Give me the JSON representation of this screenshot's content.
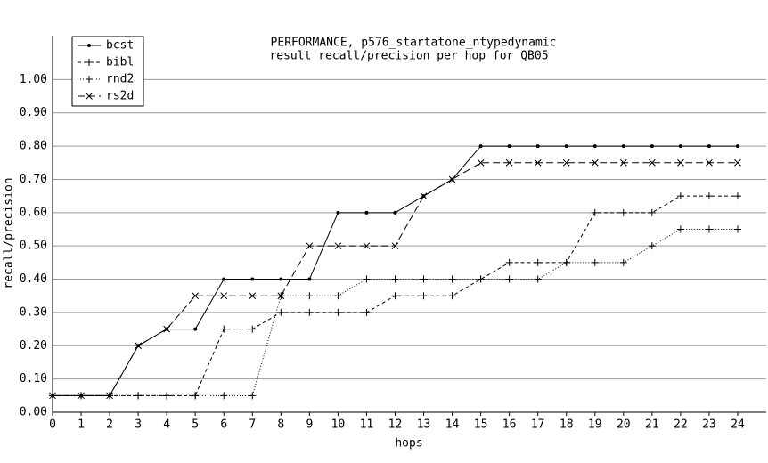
{
  "chart_data": {
    "type": "line",
    "title": "PERFORMANCE, p576_startatone_ntypedynamic",
    "subtitle": "result recall/precision per hop for QB05",
    "x_label": "hops",
    "y_label": "recall/precision",
    "x": [
      0,
      1,
      2,
      3,
      4,
      5,
      6,
      7,
      8,
      9,
      10,
      11,
      12,
      13,
      14,
      15,
      16,
      17,
      18,
      19,
      20,
      21,
      22,
      23,
      24
    ],
    "xlim": [
      0,
      25
    ],
    "xticks": [
      0,
      1,
      2,
      3,
      4,
      5,
      6,
      7,
      8,
      9,
      10,
      11,
      12,
      13,
      14,
      15,
      16,
      17,
      18,
      19,
      20,
      21,
      22,
      23,
      24
    ],
    "ylim": [
      0,
      1.1
    ],
    "yticks": [
      {
        "value": 0,
        "label": "0.00"
      },
      {
        "value": 0.1,
        "label": "0.10"
      },
      {
        "value": 0.2,
        "label": "0.20"
      },
      {
        "value": 0.3,
        "label": "0.30"
      },
      {
        "value": 0.4,
        "label": "0.40"
      },
      {
        "value": 0.5,
        "label": "0.50"
      },
      {
        "value": 0.6,
        "label": "0.60"
      },
      {
        "value": 0.7,
        "label": "0.70"
      },
      {
        "value": 0.8,
        "label": "0.80"
      },
      {
        "value": 0.9,
        "label": "0.90"
      },
      {
        "value": 1.0,
        "label": "1.00"
      }
    ],
    "grid": true,
    "legend": "upper left",
    "series": [
      {
        "name": "bcst",
        "color": "#000000",
        "dash": "solid",
        "marker": "dot",
        "values": [
          0.05,
          0.05,
          0.05,
          0.2,
          0.25,
          0.25,
          0.4,
          0.4,
          0.4,
          0.4,
          0.6,
          0.6,
          0.6,
          0.65,
          0.7,
          0.8,
          0.8,
          0.8,
          0.8,
          0.8,
          0.8,
          0.8,
          0.8,
          0.8,
          0.8
        ]
      },
      {
        "name": "bibl",
        "color": "#000000",
        "dash": "dashed",
        "marker": "plus",
        "values": [
          0.05,
          0.05,
          0.05,
          0.05,
          0.05,
          0.05,
          0.25,
          0.25,
          0.3,
          0.3,
          0.3,
          0.3,
          0.35,
          0.35,
          0.35,
          0.4,
          0.45,
          0.45,
          0.45,
          0.6,
          0.6,
          0.6,
          0.65,
          0.65,
          0.65
        ]
      },
      {
        "name": "rnd2",
        "color": "#000000",
        "dash": "dotted",
        "marker": "plus",
        "values": [
          0.05,
          0.05,
          0.05,
          0.05,
          0.05,
          0.05,
          0.05,
          0.05,
          0.35,
          0.35,
          0.35,
          0.4,
          0.4,
          0.4,
          0.4,
          0.4,
          0.4,
          0.4,
          0.45,
          0.45,
          0.45,
          0.5,
          0.55,
          0.55,
          0.55
        ]
      },
      {
        "name": "rs2d",
        "color": "#000000",
        "dash": "longdash",
        "marker": "cross",
        "values": [
          0.05,
          0.05,
          0.05,
          0.2,
          0.25,
          0.35,
          0.35,
          0.35,
          0.35,
          0.5,
          0.5,
          0.5,
          0.5,
          0.65,
          0.7,
          0.75,
          0.75,
          0.75,
          0.75,
          0.75,
          0.75,
          0.75,
          0.75,
          0.75,
          0.75
        ]
      }
    ]
  }
}
